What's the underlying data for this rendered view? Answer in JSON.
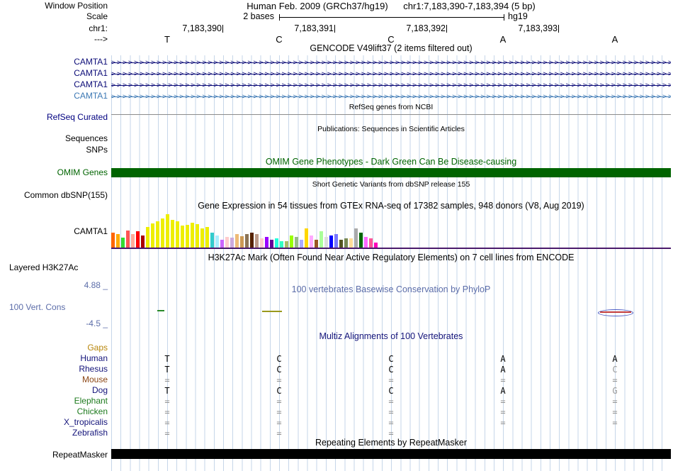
{
  "window": {
    "label": "Window Position",
    "assembly": "Human Feb. 2009 (GRCh37/hg19)",
    "position": "chr1:7,183,390-7,183,394 (5 bp)"
  },
  "scale": {
    "label": "Scale",
    "value": "2 bases",
    "genome": "hg19"
  },
  "ruler": {
    "chrom_label": "chr1:",
    "strand_label": "--->",
    "ticks": [
      "7,183,390",
      "7,183,391",
      "7,183,392",
      "7,183,393"
    ]
  },
  "sequence": {
    "bases": [
      "T",
      "C",
      "C",
      "A",
      "A"
    ]
  },
  "gencode": {
    "title": "GENCODE V49lift37 (2 items filtered out)",
    "arrow_glyph": ">",
    "transcripts": [
      {
        "label": "CAMTA1",
        "color": "#0c0c78"
      },
      {
        "label": "CAMTA1",
        "color": "#0c0c78"
      },
      {
        "label": "CAMTA1",
        "color": "#0c0c78"
      },
      {
        "label": "CAMTA1",
        "color": "#3c78b4"
      }
    ]
  },
  "refseq": {
    "title": "RefSeq genes from NCBI",
    "label": "RefSeq Curated"
  },
  "publications": {
    "title": "Publications: Sequences in Scientific Articles",
    "labels": [
      "Sequences",
      "SNPs"
    ]
  },
  "omim": {
    "title": "OMIM Gene Phenotypes - Dark Green Can Be Disease-causing",
    "label": "OMIM Genes"
  },
  "dbsnp": {
    "title": "Short Genetic Variants from dbSNP release 155",
    "label": "Common dbSNP(155)"
  },
  "gtex": {
    "title": "Gene Expression in 54 tissues from GTEx RNA-seq of 17382 samples, 948 donors (V8, Aug 2019)",
    "label": "CAMTA1"
  },
  "h3k27ac": {
    "title": "H3K27Ac Mark (Often Found Near Active Regulatory Elements) on 7 cell lines from ENCODE",
    "label": "Layered H3K27Ac"
  },
  "phylop": {
    "title": "100 vertebrates Basewise Conservation by PhyloP",
    "label": "100 Vert. Cons",
    "max": "4.88 _",
    "min": "-4.5 _"
  },
  "multiz": {
    "title": "Multiz Alignments of 100 Vertebrates",
    "rows": [
      {
        "species": "Gaps",
        "color": "#b8860b",
        "cells": [
          "",
          "",
          "",
          "",
          ""
        ],
        "cell_colors": [
          "",
          "",
          "",
          "",
          ""
        ]
      },
      {
        "species": "Human",
        "color": "#13137a",
        "cells": [
          "T",
          "C",
          "C",
          "A",
          "A"
        ],
        "cell_colors": [
          "#000000",
          "#000000",
          "#000000",
          "#000000",
          "#000000"
        ]
      },
      {
        "species": "Rhesus",
        "color": "#13137a",
        "cells": [
          "T",
          "C",
          "C",
          "A",
          "C"
        ],
        "cell_colors": [
          "#000000",
          "#000000",
          "#000000",
          "#000000",
          "#9a9a9a"
        ]
      },
      {
        "species": "Mouse",
        "color": "#8b4513",
        "cells": [
          "=",
          "=",
          "=",
          "=",
          "="
        ],
        "cell_colors": [
          "#909090",
          "#909090",
          "#909090",
          "#909090",
          "#909090"
        ]
      },
      {
        "species": "Dog",
        "color": "#13137a",
        "cells": [
          "T",
          "C",
          "C",
          "A",
          "G"
        ],
        "cell_colors": [
          "#000000",
          "#000000",
          "#000000",
          "#000000",
          "#9a9a9a"
        ]
      },
      {
        "species": "Elephant",
        "color": "#1d7a1d",
        "cells": [
          "=",
          "=",
          "=",
          "=",
          "="
        ],
        "cell_colors": [
          "#909090",
          "#909090",
          "#909090",
          "#909090",
          "#909090"
        ]
      },
      {
        "species": "Chicken",
        "color": "#1d7a1d",
        "cells": [
          "=",
          "=",
          "=",
          "=",
          "="
        ],
        "cell_colors": [
          "#909090",
          "#909090",
          "#909090",
          "#909090",
          "#909090"
        ]
      },
      {
        "species": "X_tropicalis",
        "color": "#13137a",
        "cells": [
          "=",
          "=",
          "=",
          "=",
          "="
        ],
        "cell_colors": [
          "#909090",
          "#909090",
          "#909090",
          "#909090",
          "#909090"
        ]
      },
      {
        "species": "Zebrafish",
        "color": "#13137a",
        "cells": [
          "=",
          "=",
          "=",
          "",
          ""
        ],
        "cell_colors": [
          "#909090",
          "#909090",
          "#909090",
          "",
          ""
        ]
      }
    ]
  },
  "repeatmasker": {
    "title": "Repeating Elements by RepeatMasker",
    "label": "RepeatMasker"
  },
  "colors": {
    "omim_green": "#006400",
    "refseq_navy": "#000080",
    "phylop_blue": "#5c6da9",
    "multiz_navy": "#13137a",
    "gtex_baseline": "#4a1a6b"
  },
  "chart_data": {
    "type": "bar",
    "title": "Gene Expression in 54 tissues from GTEx RNA-seq of 17382 samples, 948 donors (V8, Aug 2019)",
    "gene": "CAMTA1",
    "values": [
      22,
      20,
      15,
      25,
      20,
      24,
      18,
      30,
      35,
      38,
      42,
      48,
      40,
      38,
      32,
      33,
      36,
      34,
      28,
      30,
      22,
      18,
      12,
      16,
      15,
      20,
      17,
      20,
      22,
      20,
      14,
      16,
      12,
      14,
      10,
      10,
      18,
      16,
      12,
      28,
      18,
      12,
      24,
      16,
      18,
      20,
      12,
      14,
      14,
      28,
      22,
      16,
      14,
      8
    ],
    "colors": [
      "#FF6600",
      "#FFAA00",
      "#33DD33",
      "#FF5555",
      "#FFAA99",
      "#FF0000",
      "#AA0000",
      "#EEEE00",
      "#EEEE00",
      "#EEEE00",
      "#EEEE00",
      "#EEEE00",
      "#EEEE00",
      "#EEEE00",
      "#EEEE00",
      "#EEEE00",
      "#EEEE00",
      "#EEEE00",
      "#EEEE00",
      "#EEEE00",
      "#33CCCC",
      "#AAEEFF",
      "#CC66FF",
      "#FFCCCC",
      "#CCAADD",
      "#EEBB77",
      "#CC9955",
      "#8B7355",
      "#552200",
      "#BB9988",
      "#FFCCCC",
      "#9900FF",
      "#660099",
      "#22FFDD",
      "#33FFC2",
      "#AABB66",
      "#99FF00",
      "#99BB88",
      "#AAAAFF",
      "#FFD700",
      "#FFAAFF",
      "#995522",
      "#AAFF99",
      "#DDDDDD",
      "#0000FF",
      "#7777FF",
      "#555522",
      "#778855",
      "#FFDD99",
      "#AAAAAA",
      "#006600",
      "#FF66FF",
      "#FF5599",
      "#FF00BB"
    ]
  }
}
